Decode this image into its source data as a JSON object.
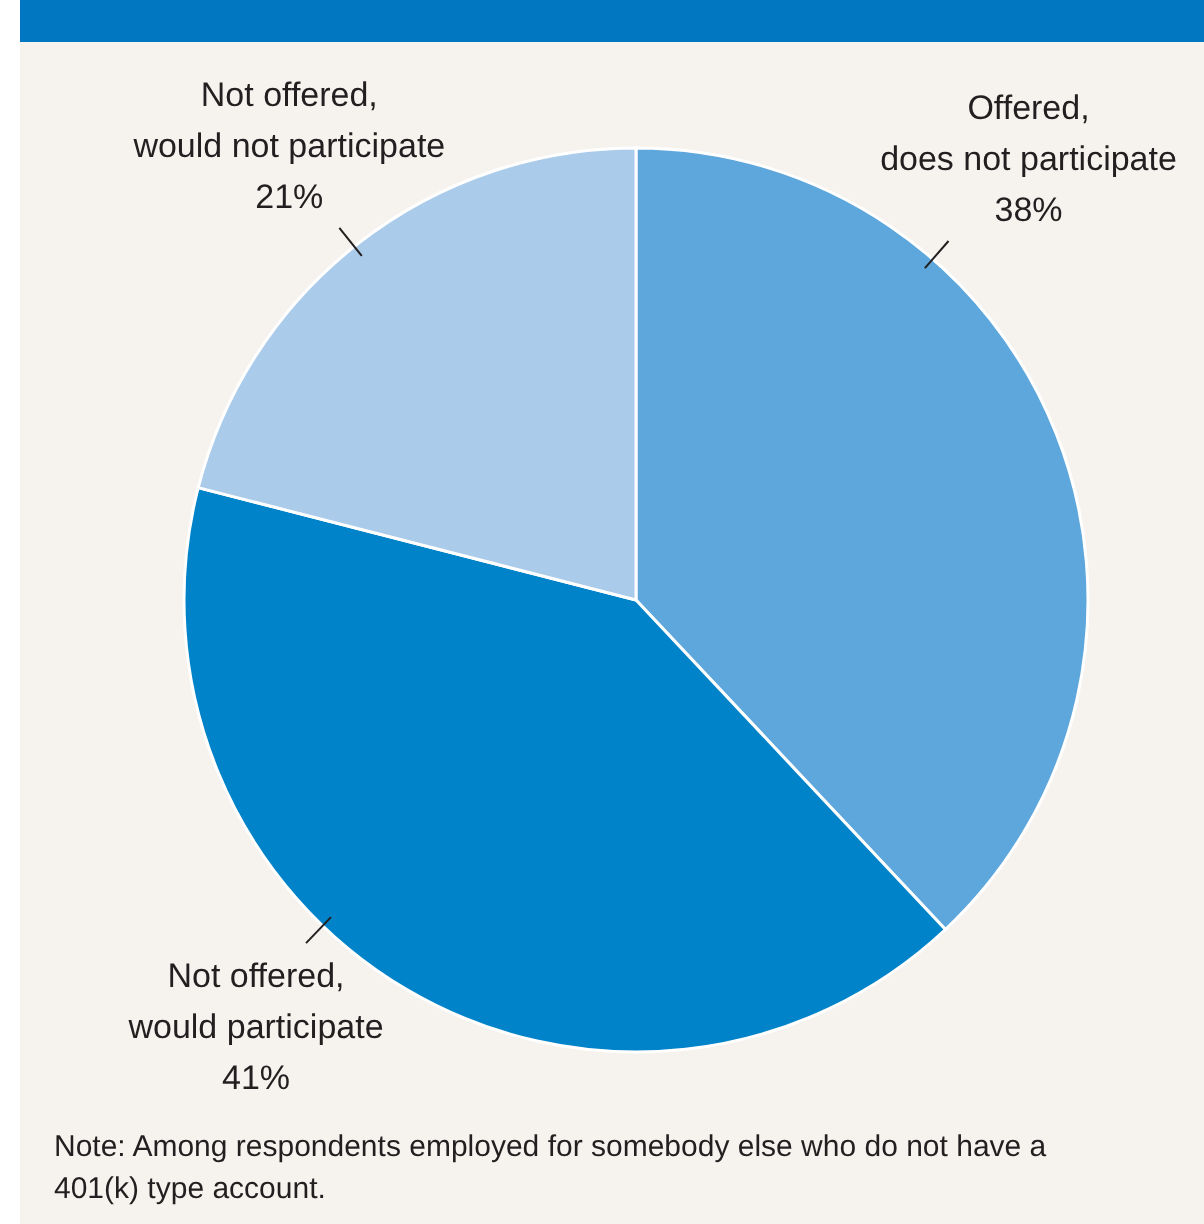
{
  "chart_data": {
    "type": "pie",
    "categories": [
      "Offered, does not participate",
      "Not offered, would participate",
      "Not offered, would not participate"
    ],
    "values": [
      38,
      41,
      21
    ],
    "colors": [
      "#5ea7dc",
      "#0083c8",
      "#abcbea"
    ],
    "value_labels": [
      "38%",
      "41%",
      "21%"
    ],
    "annotations": [
      "Note: Among respondents employed for somebody else who do not have a 401(k) type account."
    ]
  }
}
